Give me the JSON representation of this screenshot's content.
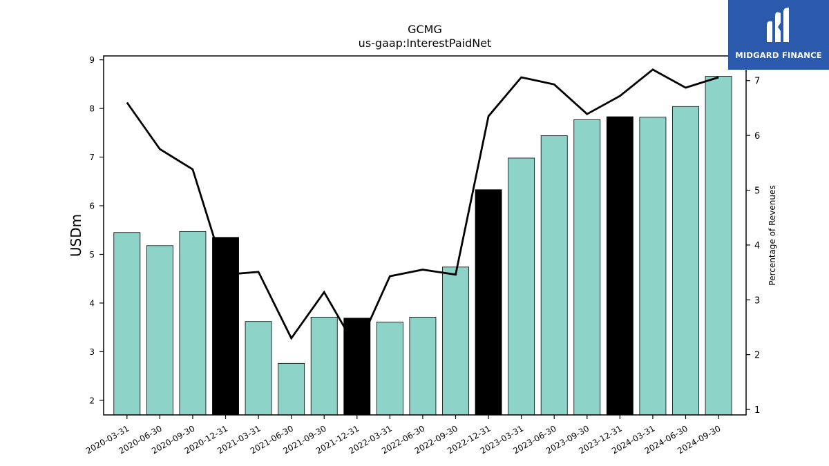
{
  "brand": {
    "name": "MIDGARD FINANCE",
    "bg_color": "#2b5aad"
  },
  "chart_data": {
    "type": "bar",
    "title": "GCMG",
    "subtitle": "us-gaap:InterestPaidNet",
    "ylabel": "USDm",
    "y2label": "Percentage of Revenues",
    "ylim": [
      1.7,
      9.08
    ],
    "y2lim": [
      0.9,
      7.45
    ],
    "yticks": [
      2,
      3,
      4,
      5,
      6,
      7,
      8,
      9
    ],
    "y2ticks": [
      1,
      2,
      3,
      4,
      5,
      6,
      7
    ],
    "categories": [
      "2020-03-31",
      "2020-06-30",
      "2020-09-30",
      "2020-12-31",
      "2021-03-31",
      "2021-06-30",
      "2021-09-30",
      "2021-12-31",
      "2022-03-31",
      "2022-06-30",
      "2022-09-30",
      "2022-12-31",
      "2023-03-31",
      "2023-06-30",
      "2023-09-30",
      "2023-12-31",
      "2024-03-31",
      "2024-06-30",
      "2024-09-30"
    ],
    "series": [
      {
        "kind": "bar",
        "axis": "left",
        "values": [
          5.45,
          5.18,
          5.47,
          5.35,
          3.62,
          2.76,
          3.71,
          3.69,
          3.61,
          3.71,
          4.74,
          6.33,
          6.98,
          7.44,
          7.77,
          7.83,
          7.82,
          8.04,
          8.66
        ],
        "highlight": [
          false,
          false,
          false,
          true,
          false,
          false,
          false,
          true,
          false,
          false,
          false,
          true,
          false,
          false,
          false,
          true,
          false,
          false,
          false
        ]
      },
      {
        "kind": "line",
        "axis": "right",
        "values": [
          6.6,
          5.75,
          5.38,
          3.46,
          3.51,
          2.3,
          3.14,
          2.1,
          3.43,
          3.55,
          3.46,
          6.35,
          7.06,
          6.93,
          6.39,
          6.72,
          7.2,
          6.87,
          7.06
        ]
      }
    ],
    "colors": {
      "bar": "#8dd3c7",
      "bar_highlight": "#000000",
      "line": "#000000"
    },
    "grid": false
  }
}
